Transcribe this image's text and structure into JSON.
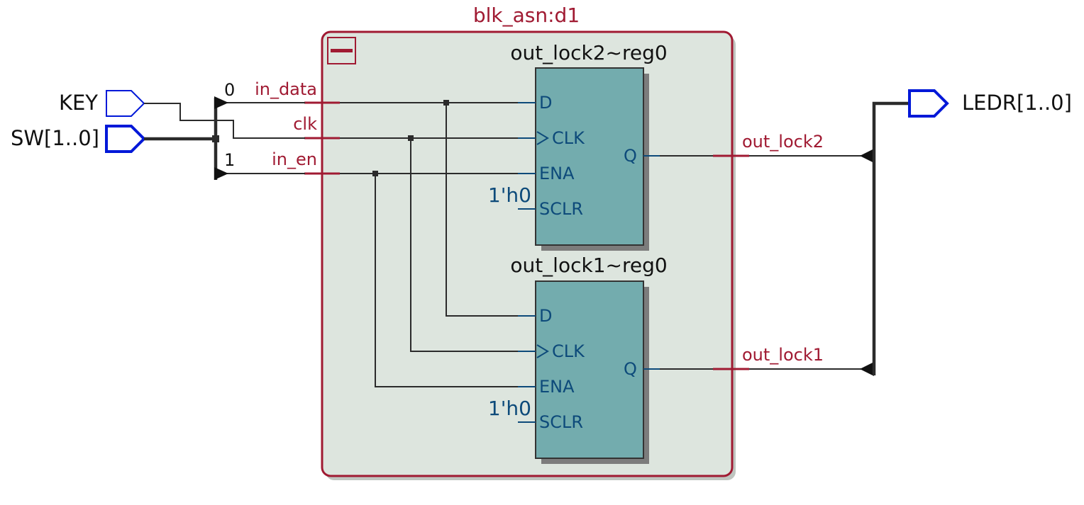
{
  "block": {
    "title": "blk_asn:d1",
    "collapse_glyph": "minus-icon"
  },
  "inputs": {
    "key": "KEY",
    "sw": "SW[1..0]"
  },
  "output": {
    "ledr": "LEDR[1..0]"
  },
  "bus_index": {
    "zero": "0",
    "one": "1"
  },
  "block_ports": {
    "in_data": "in_data",
    "clk": "clk",
    "in_en": "in_en",
    "out_lock2": "out_lock2",
    "out_lock1": "out_lock1"
  },
  "registers": [
    {
      "name": "out_lock2~reg0",
      "pin_d": "D",
      "pin_clk": "CLK",
      "pin_ena": "ENA",
      "pin_sclr": "SCLR",
      "pin_q": "Q",
      "const": "1'h0"
    },
    {
      "name": "out_lock1~reg0",
      "pin_d": "D",
      "pin_clk": "CLK",
      "pin_ena": "ENA",
      "pin_sclr": "SCLR",
      "pin_q": "Q",
      "const": "1'h0"
    }
  ],
  "colors": {
    "block_border": "#a01a32",
    "block_fill": "#dde5de",
    "register_fill": "#73acae",
    "io_port": "#0018d8",
    "wire": "#2b2b2b",
    "pin_text": "#0d4a7a"
  }
}
